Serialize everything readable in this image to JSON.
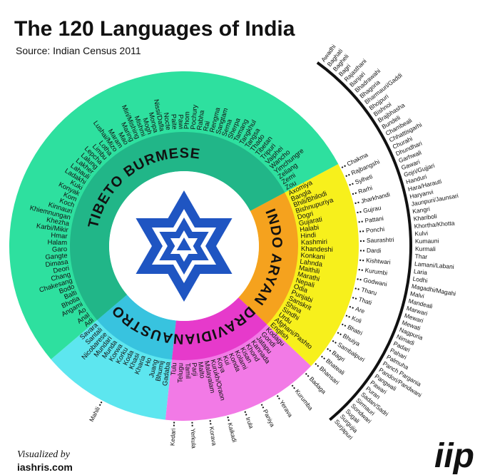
{
  "title": "The 120 Languages of India",
  "source": "Source: Indian Census 2011",
  "credit": {
    "label": "Visualized by",
    "site": "iashris.com"
  },
  "logo": "iip",
  "families": [
    {
      "name": "INDO ARYAN",
      "languages": [
        "Axomiya",
        "Bangla",
        "Bhili/Bhilodi",
        "Bishnupuriya",
        "Dogri",
        "Gujarati",
        "Halabi",
        "Hindi",
        "Kashmiri",
        "Khandeshi",
        "Konkani",
        "Lahnda",
        "Maithili",
        "Marathi",
        "Nepali",
        "Odia",
        "Punjabi",
        "Sanskrit",
        "Shina",
        "Sindhi",
        "Urdu",
        "Afghani/Pashto",
        "English"
      ],
      "others": [
        "Chakma",
        "Rajbangshi",
        "Sylheti",
        "Rarhi",
        "Jharkhandi",
        "Gujrau",
        "Pattani",
        "Ponchi",
        "Saurashtri",
        "Dardi",
        "Kishtwari",
        "Kurumbi",
        "Godwani",
        "Tharu",
        "Thati",
        "Are",
        "Koli",
        "Bhatri",
        "Bhuiya",
        "Sambalpuri",
        "Bagri",
        "Bhateali",
        "Bhansari"
      ],
      "dialects": [
        "Awadhi",
        "Baghati",
        "Bagheli",
        "Bagri",
        "Rajasthani",
        "Banjari",
        "Bhadrawahi",
        "Bhagoria",
        "Bharmauri/Gaddi",
        "Bhojpuri",
        "Bishnoi",
        "Brajbhasha",
        "Bundeli",
        "Chambeali",
        "Chhattisgarhi",
        "Churahi",
        "Dhundhari",
        "Garhwali",
        "Gawari",
        "Gojri/Gujjari",
        "Handuri",
        "Hara/Harauti",
        "Haryanvi",
        "Jaunpuri/Jaunsari",
        "Kangri",
        "Khariboli",
        "Khortha/Khotta",
        "Kulvi",
        "Kumauni",
        "Kurmali",
        "Thar",
        "Lamani/Labani",
        "Laria",
        "Lodhi",
        "Magadhi/Magahi",
        "Malvi",
        "Mandeali",
        "Marwari",
        "Mewari",
        "Mewati",
        "Nagpuria",
        "Nimadi",
        "Padari",
        "Pahari",
        "Palmuha",
        "Panch Pargania",
        "Pandori/Pandwani",
        "Pangwali",
        "Pawari",
        "Puran",
        "Sadan/Sadri",
        "Sirmauri",
        "Sondwari",
        "Sugali",
        "Surgujia",
        "Surjapuri"
      ]
    },
    {
      "name": "DRAVIDIAN",
      "languages": [
        "Kodagu",
        "Gondi",
        "Jatapu",
        "Kannada",
        "Khond",
        "Kisan",
        "Kolami",
        "Konda",
        "Kui",
        "Koya",
        "Kurukh/Oraon",
        "Malayalam",
        "Malto",
        "Parji",
        "Tamil",
        "Telugu",
        "Tulu"
      ],
      "others": [
        "Badaga",
        "Kurumba",
        "Yerava",
        "Paniya",
        "Irula",
        "Kaikadi",
        "Korava",
        "Yerkula",
        "Kedari"
      ]
    },
    {
      "name": "AUSTRO",
      "languages": [
        "Gadaba",
        "Bhumij",
        "Juang",
        "Ho",
        "Kharia",
        "Khasi",
        "Koda",
        "Korku",
        "Korwa",
        "Munda",
        "Mundari",
        "Nicobarese",
        "Santali",
        "Savara"
      ],
      "others": [
        "Mahili"
      ]
    },
    {
      "name": "TIBETO BURMESE",
      "languages": [
        "Adi",
        "Anal",
        "Ao",
        "Angami",
        "Bhotia",
        "Balti",
        "Bodo",
        "Chakesang",
        "Chang",
        "Deori",
        "Dimasa",
        "Gangte",
        "Garo",
        "Halam",
        "Hmar",
        "Karbi/Mikir",
        "Khezha",
        "Khiemnungan",
        "Kinnauri",
        "Koch",
        "Kom",
        "Konyak",
        "Kuki",
        "Ladakhi",
        "Lahauli",
        "Lakher",
        "Lalung",
        "Lepcha",
        "Limbu",
        "Lotha",
        "Lushai/Mizo",
        "Maram",
        "Mao",
        "Maring",
        "Miri/Mishing",
        "Mishmi",
        "Mogh",
        "Monpa",
        "Nissi/Dafla",
        "Nocte",
        "Paite",
        "Pawi",
        "Phom",
        "Pochury",
        "Rabha",
        "Rai",
        "Rengma",
        "Sangtam",
        "Sema",
        "Sherpa",
        "Tamang",
        "Tangkhul",
        "Tangsa",
        "Thado",
        "Tibetan",
        "Tripuri",
        "Vaiphei",
        "Wancho",
        "Yimchungre",
        "Zeliang",
        "Zemi",
        "Zou"
      ],
      "others": []
    }
  ]
}
